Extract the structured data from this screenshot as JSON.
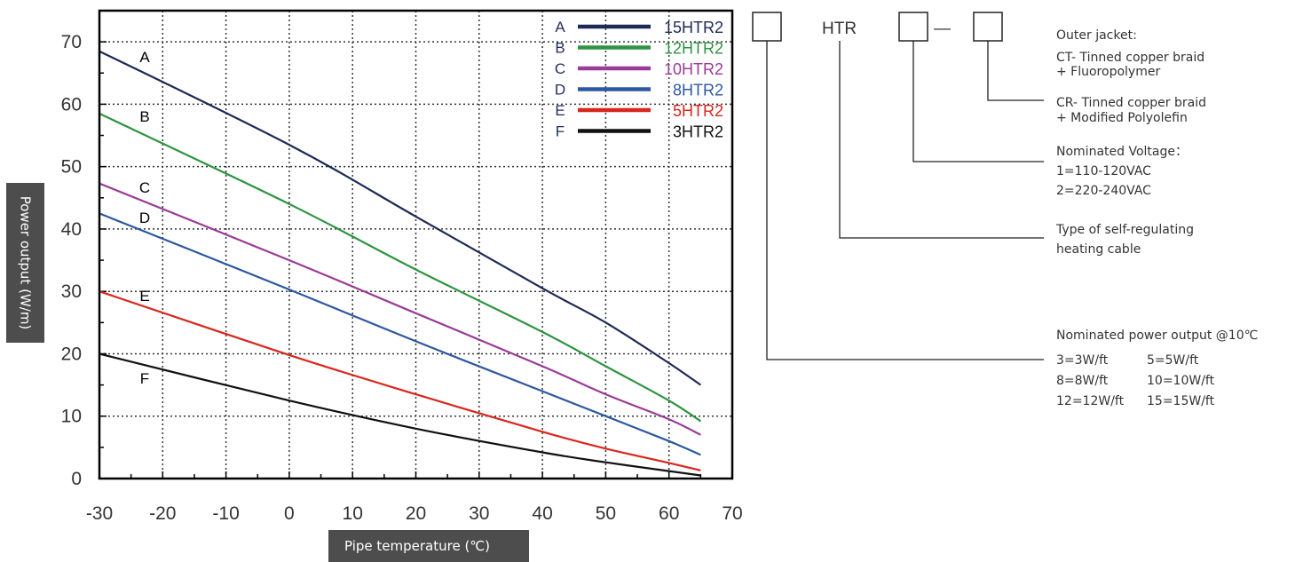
{
  "chart_data": {
    "type": "line",
    "xlabel": "Pipe temperature (℃)",
    "ylabel": "Power output (W/m)",
    "xlim": [
      -30,
      70
    ],
    "ylim": [
      0,
      75
    ],
    "xticks": [
      -30,
      -20,
      -10,
      0,
      10,
      20,
      30,
      40,
      50,
      60,
      70
    ],
    "yticks": [
      0,
      10,
      20,
      30,
      40,
      50,
      60,
      70
    ],
    "grid": true,
    "legend_position": "top-right",
    "series": [
      {
        "letter": "A",
        "name": "15HTR2",
        "color": "#1e2a55",
        "points": [
          [
            -30,
            68.5
          ],
          [
            0,
            53.5
          ],
          [
            20,
            42
          ],
          [
            40,
            30.5
          ],
          [
            50,
            25
          ],
          [
            60,
            18.5
          ],
          [
            65,
            15
          ]
        ]
      },
      {
        "letter": "B",
        "name": "12HTR2",
        "color": "#2e9441",
        "points": [
          [
            -30,
            58.5
          ],
          [
            0,
            44
          ],
          [
            20,
            33.5
          ],
          [
            40,
            23.5
          ],
          [
            50,
            18
          ],
          [
            60,
            12.5
          ],
          [
            65,
            9.2
          ]
        ]
      },
      {
        "letter": "C",
        "name": "10HTR2",
        "color": "#9b3a97",
        "points": [
          [
            -30,
            47.3
          ],
          [
            0,
            35
          ],
          [
            20,
            26.5
          ],
          [
            40,
            18
          ],
          [
            50,
            13.5
          ],
          [
            60,
            9.5
          ],
          [
            65,
            7
          ]
        ]
      },
      {
        "letter": "D",
        "name": "8HTR2",
        "color": "#2c58a0",
        "points": [
          [
            -30,
            42.5
          ],
          [
            0,
            30.3
          ],
          [
            20,
            22
          ],
          [
            40,
            14
          ],
          [
            50,
            10
          ],
          [
            60,
            6
          ],
          [
            65,
            3.8
          ]
        ]
      },
      {
        "letter": "E",
        "name": "5HTR2",
        "color": "#d9261c",
        "points": [
          [
            -30,
            30
          ],
          [
            0,
            19.8
          ],
          [
            20,
            13.5
          ],
          [
            40,
            7.5
          ],
          [
            50,
            4.8
          ],
          [
            60,
            2.5
          ],
          [
            65,
            1.3
          ]
        ]
      },
      {
        "letter": "F",
        "name": "3HTR2",
        "color": "#111111",
        "points": [
          [
            -30,
            20
          ],
          [
            0,
            12.5
          ],
          [
            20,
            8
          ],
          [
            40,
            4.2
          ],
          [
            50,
            2.6
          ],
          [
            60,
            1.2
          ],
          [
            65,
            0.5
          ]
        ]
      }
    ]
  },
  "spec": {
    "code_prefix": "HTR",
    "separator": "—",
    "outer_jacket_title": "Outer jacket:",
    "ct_line1": "CT- Tinned copper braid",
    "ct_line2": "+ Fluoropolymer",
    "cr_line1": "CR- Tinned copper braid",
    "cr_line2": "+ Modified Polyolefin",
    "voltage_title": "Nominated Voltage：",
    "voltage_1": "1=110-120VAC",
    "voltage_2": "2=220-240VAC",
    "type_line1": "Type of self-regulating",
    "type_line2": "heating cable",
    "power_title": "Nominated power output @10℃",
    "power_rows": [
      [
        "3=3W/ft",
        "5=5W/ft"
      ],
      [
        "8=8W/ft",
        "10=10W/ft"
      ],
      [
        "12=12W/ft",
        "15=15W/ft"
      ]
    ]
  },
  "colors": {
    "axis_label_box": "#4d4d4d",
    "leader_lines": "#222222",
    "grid": "#333333"
  }
}
